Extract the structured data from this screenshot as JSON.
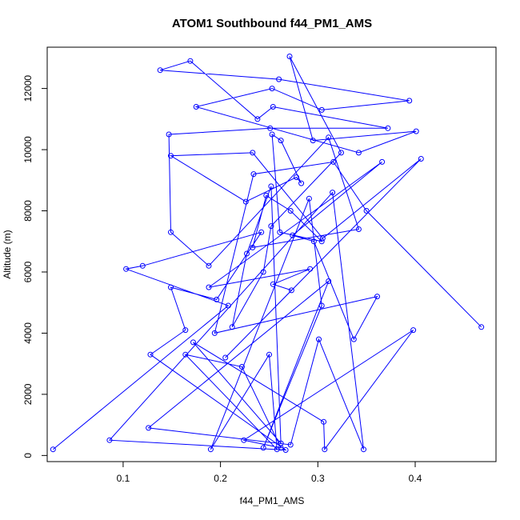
{
  "chart_data": {
    "type": "line",
    "title": "ATOM1 Southbound f44_PM1_AMS",
    "xlabel": "f44_PM1_AMS",
    "ylabel": "Altitude (m)",
    "xlim": [
      0.022,
      0.483
    ],
    "ylim": [
      -200,
      13350
    ],
    "x_ticks": [
      0.1,
      0.2,
      0.3,
      0.4
    ],
    "x_tick_labels": [
      "0.1",
      "0.2",
      "0.3",
      "0.4"
    ],
    "y_ticks": [
      0,
      2000,
      4000,
      6000,
      8000,
      10000,
      12000
    ],
    "y_tick_labels": [
      "0",
      "2000",
      "4000",
      "6000",
      "8000",
      "10000",
      "12000"
    ],
    "grid": false,
    "style": {
      "line_color": "#0000ff",
      "marker": "open-circle"
    },
    "series": [
      {
        "x": [
          0.028,
          0.208,
          0.103,
          0.12,
          0.242,
          0.196,
          0.149,
          0.164,
          0.128,
          0.267,
          0.086,
          0.315,
          0.347,
          0.301,
          0.272,
          0.126,
          0.311,
          0.244,
          0.304,
          0.291,
          0.19,
          0.25,
          0.258,
          0.164,
          0.222,
          0.262,
          0.224,
          0.398,
          0.307,
          0.306,
          0.172,
          0.262,
          0.252,
          0.227,
          0.212,
          0.244,
          0.252,
          0.324,
          0.271,
          0.295,
          0.401,
          0.342,
          0.175,
          0.253,
          0.304,
          0.394,
          0.26,
          0.138,
          0.169,
          0.238,
          0.254,
          0.372,
          0.251,
          0.147,
          0.149,
          0.188,
          0.311,
          0.342,
          0.233,
          0.247,
          0.272,
          0.304,
          0.261,
          0.253,
          0.262,
          0.283,
          0.278,
          0.226,
          0.149,
          0.233,
          0.305,
          0.406,
          0.205,
          0.273,
          0.254,
          0.292,
          0.188,
          0.366,
          0.274,
          0.296,
          0.337,
          0.361,
          0.194,
          0.234,
          0.316,
          0.35,
          0.468
        ],
        "y": [
          200,
          4900,
          6100,
          6200,
          7300,
          5100,
          5500,
          4100,
          3300,
          180,
          500,
          8600,
          200,
          3800,
          350,
          900,
          5700,
          250,
          4900,
          8400,
          200,
          3300,
          200,
          3300,
          2900,
          250,
          500,
          4100,
          200,
          1100,
          3700,
          400,
          8800,
          6600,
          4200,
          6000,
          7500,
          9900,
          13050,
          10300,
          10600,
          9900,
          11400,
          12000,
          11300,
          11600,
          12300,
          12600,
          12900,
          11000,
          11400,
          10700,
          10700,
          10500,
          7300,
          6200,
          10400,
          7400,
          6800,
          8500,
          8000,
          7000,
          7300,
          10500,
          10300,
          8900,
          9100,
          8300,
          9800,
          9900,
          7100,
          9700,
          3200,
          5400,
          5600,
          6100,
          5500,
          9600,
          7200,
          7000,
          3800,
          5200,
          4000,
          9200,
          9600,
          8000,
          4200
        ]
      }
    ]
  }
}
